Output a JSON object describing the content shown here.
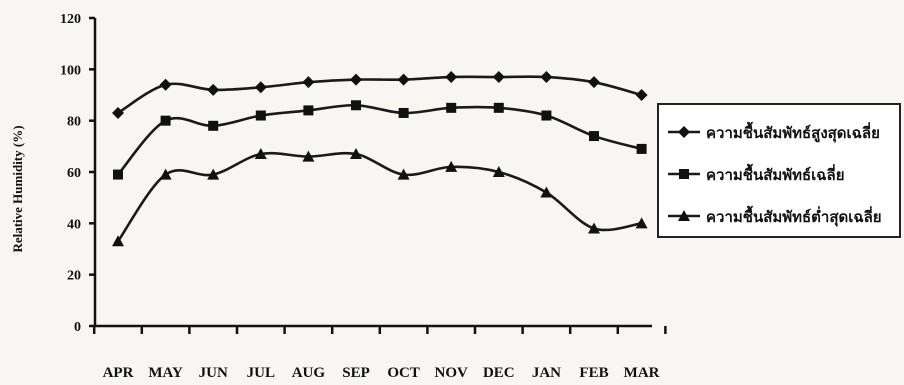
{
  "chart_data": {
    "type": "line",
    "title": "",
    "xlabel": "",
    "ylabel": "Relative Humidity (%)",
    "ylim": [
      0,
      120
    ],
    "yticks": [
      0,
      20,
      40,
      60,
      80,
      100,
      120
    ],
    "grid": false,
    "legend_position": "right",
    "categories": [
      "APR",
      "MAY",
      "JUN",
      "JUL",
      "AUG",
      "SEP",
      "OCT",
      "NOV",
      "DEC",
      "JAN",
      "FEB",
      "MAR"
    ],
    "series": [
      {
        "name": "ความชื้นสัมพัทธ์สูงสุดเฉลี่ย",
        "marker": "diamond",
        "values": [
          83,
          94,
          92,
          93,
          95,
          96,
          96,
          97,
          97,
          97,
          95,
          90
        ]
      },
      {
        "name": "ความชื้นสัมพัทธ์เฉลี่ย",
        "marker": "square",
        "values": [
          59,
          80,
          78,
          82,
          84,
          86,
          83,
          85,
          85,
          82,
          74,
          69
        ]
      },
      {
        "name": "ความชื้นสัมพัทธ์ต่ำสุดเฉลี่ย",
        "marker": "triangle",
        "values": [
          33,
          59,
          59,
          67,
          66,
          67,
          59,
          62,
          60,
          52,
          38,
          40
        ]
      }
    ],
    "colors": {
      "line": "#1a1a1a",
      "marker": "#111111",
      "legend_bg": "#ffffff"
    }
  }
}
